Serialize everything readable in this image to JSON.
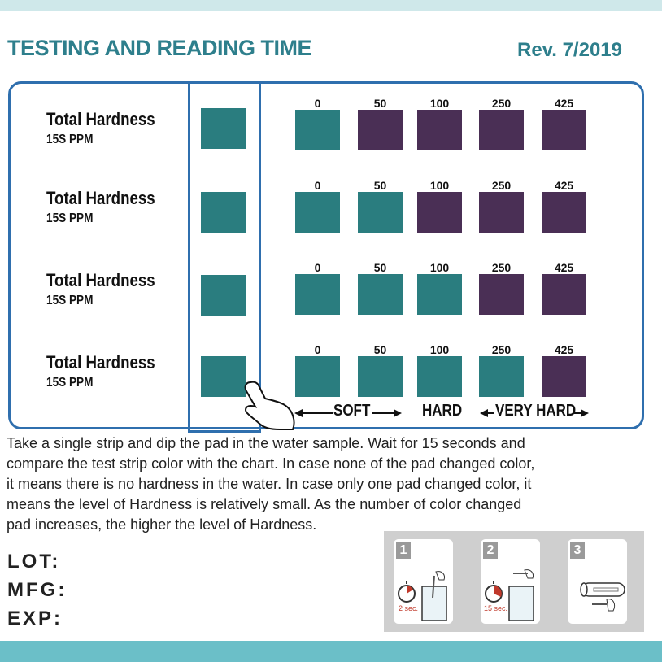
{
  "header": {
    "title": "TESTING AND READING TIME",
    "revision": "Rev. 7/2019"
  },
  "chart_rows": [
    {
      "label": "Total Hardness",
      "unit": "15S  PPM",
      "values": [
        "0",
        "50",
        "100",
        "250",
        "425"
      ]
    },
    {
      "label": "Total Hardness",
      "unit": "15S  PPM",
      "values": [
        "0",
        "50",
        "100",
        "250",
        "425"
      ]
    },
    {
      "label": "Total Hardness",
      "unit": "15S  PPM",
      "values": [
        "0",
        "50",
        "100",
        "250",
        "425"
      ]
    },
    {
      "label": "Total Hardness",
      "unit": "15S  PPM",
      "values": [
        "0",
        "50",
        "100",
        "250",
        "425"
      ]
    }
  ],
  "colors": {
    "teal": "#2a7d7f",
    "purple": "#4a2f55",
    "border": "#2f6fae",
    "title": "#2e7f8c"
  },
  "scale": {
    "soft": "SOFT",
    "hard": "HARD",
    "very_hard": "VERY HARD"
  },
  "instructions": [
    "Take a single strip and dip the pad in the water sample. Wait for 15 seconds and",
    "compare the test strip color with the chart. In case none of the pad changed color,",
    "it means there is no hardness in the water. In case only one pad changed color, it",
    "means the level of Hardness is relatively small. As the number of color changed",
    "pad increases, the higher the level of Hardness."
  ],
  "fields": {
    "lot": "LOT:",
    "mfg": "MFG:",
    "exp": "EXP:"
  },
  "steps": [
    {
      "number": "1",
      "time": "2 sec."
    },
    {
      "number": "2",
      "time": "15 sec."
    },
    {
      "number": "3",
      "time": ""
    }
  ]
}
